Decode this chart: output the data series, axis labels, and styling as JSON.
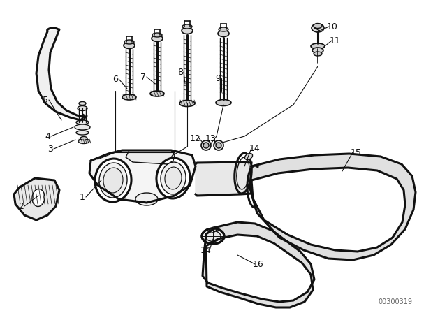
{
  "bg_color": "#ffffff",
  "line_color": "#111111",
  "watermark": "00300319",
  "label_fs": 9,
  "lw_thick": 2.2,
  "lw_thin": 1.0
}
